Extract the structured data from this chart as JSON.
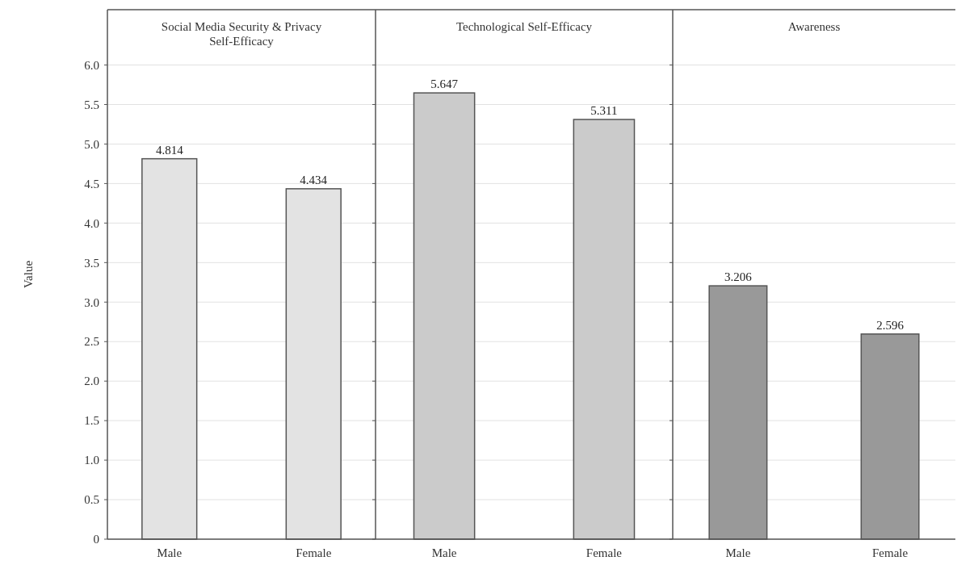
{
  "chart_data": [
    {
      "type": "bar",
      "title": "Social Media Security & Privacy Self-Efficacy",
      "ylabel": "Value",
      "categories": [
        "Male",
        "Female"
      ],
      "values": [
        4.814,
        4.434
      ],
      "color": "#e3e3e3",
      "data_labels": true,
      "ylim": [
        0,
        6.7
      ],
      "yticks": [
        0,
        0.5,
        {
          "value": 1,
          "label": "1.0"
        },
        1.5,
        {
          "value": 2,
          "label": "2.0"
        },
        2.5,
        {
          "value": 3,
          "label": "3.0"
        },
        3.5,
        {
          "value": 4,
          "label": "4.0"
        },
        4.5,
        {
          "value": 5,
          "label": "5.0"
        },
        5.5,
        {
          "value": 6,
          "label": "6.0"
        }
      ],
      "grid": "y"
    },
    {
      "type": "bar",
      "title": "Technological Self-Efficacy",
      "categories": [
        "Male",
        "Female"
      ],
      "values": [
        5.647,
        5.311
      ],
      "color": "#cbcbcb",
      "data_labels": true,
      "ylim": [
        0,
        6.7
      ],
      "yticks": [
        0,
        0.5,
        1,
        1.5,
        2,
        2.5,
        3,
        3.5,
        4,
        4.5,
        5,
        5.5,
        6
      ],
      "grid": "y",
      "tick_labels": "x"
    },
    {
      "type": "bar",
      "title": "Awareness",
      "categories": [
        "Male",
        "Female"
      ],
      "values": [
        3.206,
        2.596
      ],
      "color": "#999999",
      "data_labels": true,
      "ylim": [
        0,
        6.7
      ],
      "yticks": [
        0,
        0.5,
        1,
        1.5,
        2,
        2.5,
        3,
        3.5,
        4,
        4.5,
        5,
        5.5,
        6
      ],
      "grid": "y",
      "tick_labels": "x"
    }
  ]
}
